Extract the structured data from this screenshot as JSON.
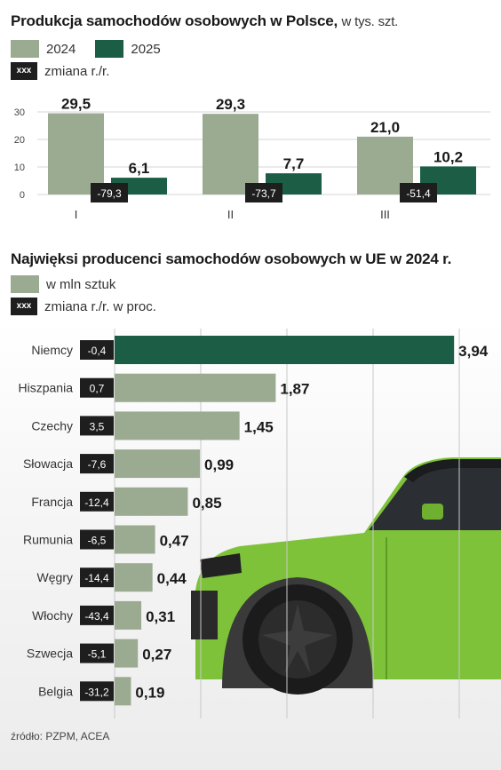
{
  "chart1": {
    "title": "Produkcja samochodów osobowych w Polsce,",
    "unit": "w tys. szt.",
    "legend": [
      {
        "label": "2024",
        "color": "#9aab91"
      },
      {
        "label": "2025",
        "color": "#1b5e45"
      }
    ],
    "change_legend": {
      "swatch": "xxx",
      "label": "zmiana r./r."
    }
  },
  "chart2": {
    "title": "Najwięksi producenci samochodów osobowych w UE w 2024 r.",
    "legend": {
      "label": "w mln sztuk",
      "color": "#9aab91"
    },
    "change_legend": {
      "swatch": "xxx",
      "label": "zmiana r./r. w proc."
    },
    "highlight_color": "#1b5e45"
  },
  "source": "źródło: PZPM, ACEA",
  "chart_data": [
    {
      "type": "bar",
      "categories": [
        "I",
        "II",
        "III"
      ],
      "series": [
        {
          "name": "2024",
          "values": [
            29.5,
            29.3,
            21.0
          ],
          "labels": [
            "29,5",
            "29,3",
            "21,0"
          ],
          "color": "#9aab91"
        },
        {
          "name": "2025",
          "values": [
            6.1,
            7.7,
            10.2
          ],
          "labels": [
            "6,1",
            "7,7",
            "10,2"
          ],
          "color": "#1b5e45"
        }
      ],
      "change": [
        "-79,3",
        "-73,7",
        "-51,4"
      ],
      "yticks": [
        "0",
        "10",
        "20",
        "30"
      ],
      "ylim": [
        0,
        30
      ],
      "grid": true
    },
    {
      "type": "bar",
      "orientation": "horizontal",
      "categories": [
        "Niemcy",
        "Hiszpania",
        "Czechy",
        "Słowacja",
        "Francja",
        "Rumunia",
        "Węgry",
        "Włochy",
        "Szwecja",
        "Belgia"
      ],
      "values": [
        3.94,
        1.87,
        1.45,
        0.99,
        0.85,
        0.47,
        0.44,
        0.31,
        0.27,
        0.19
      ],
      "labels": [
        "3,94",
        "1,87",
        "1,45",
        "0,99",
        "0,85",
        "0,47",
        "0,44",
        "0,31",
        "0,27",
        "0,19"
      ],
      "change": [
        "-0,4",
        "0,7",
        "3,5",
        "-7,6",
        "-12,4",
        "-6,5",
        "-14,4",
        "-43,4",
        "-5,1",
        "-31,2"
      ],
      "xticks": [
        "0",
        "1",
        "2",
        "3",
        "4"
      ],
      "xlim": [
        0,
        4
      ],
      "grid": true
    }
  ]
}
